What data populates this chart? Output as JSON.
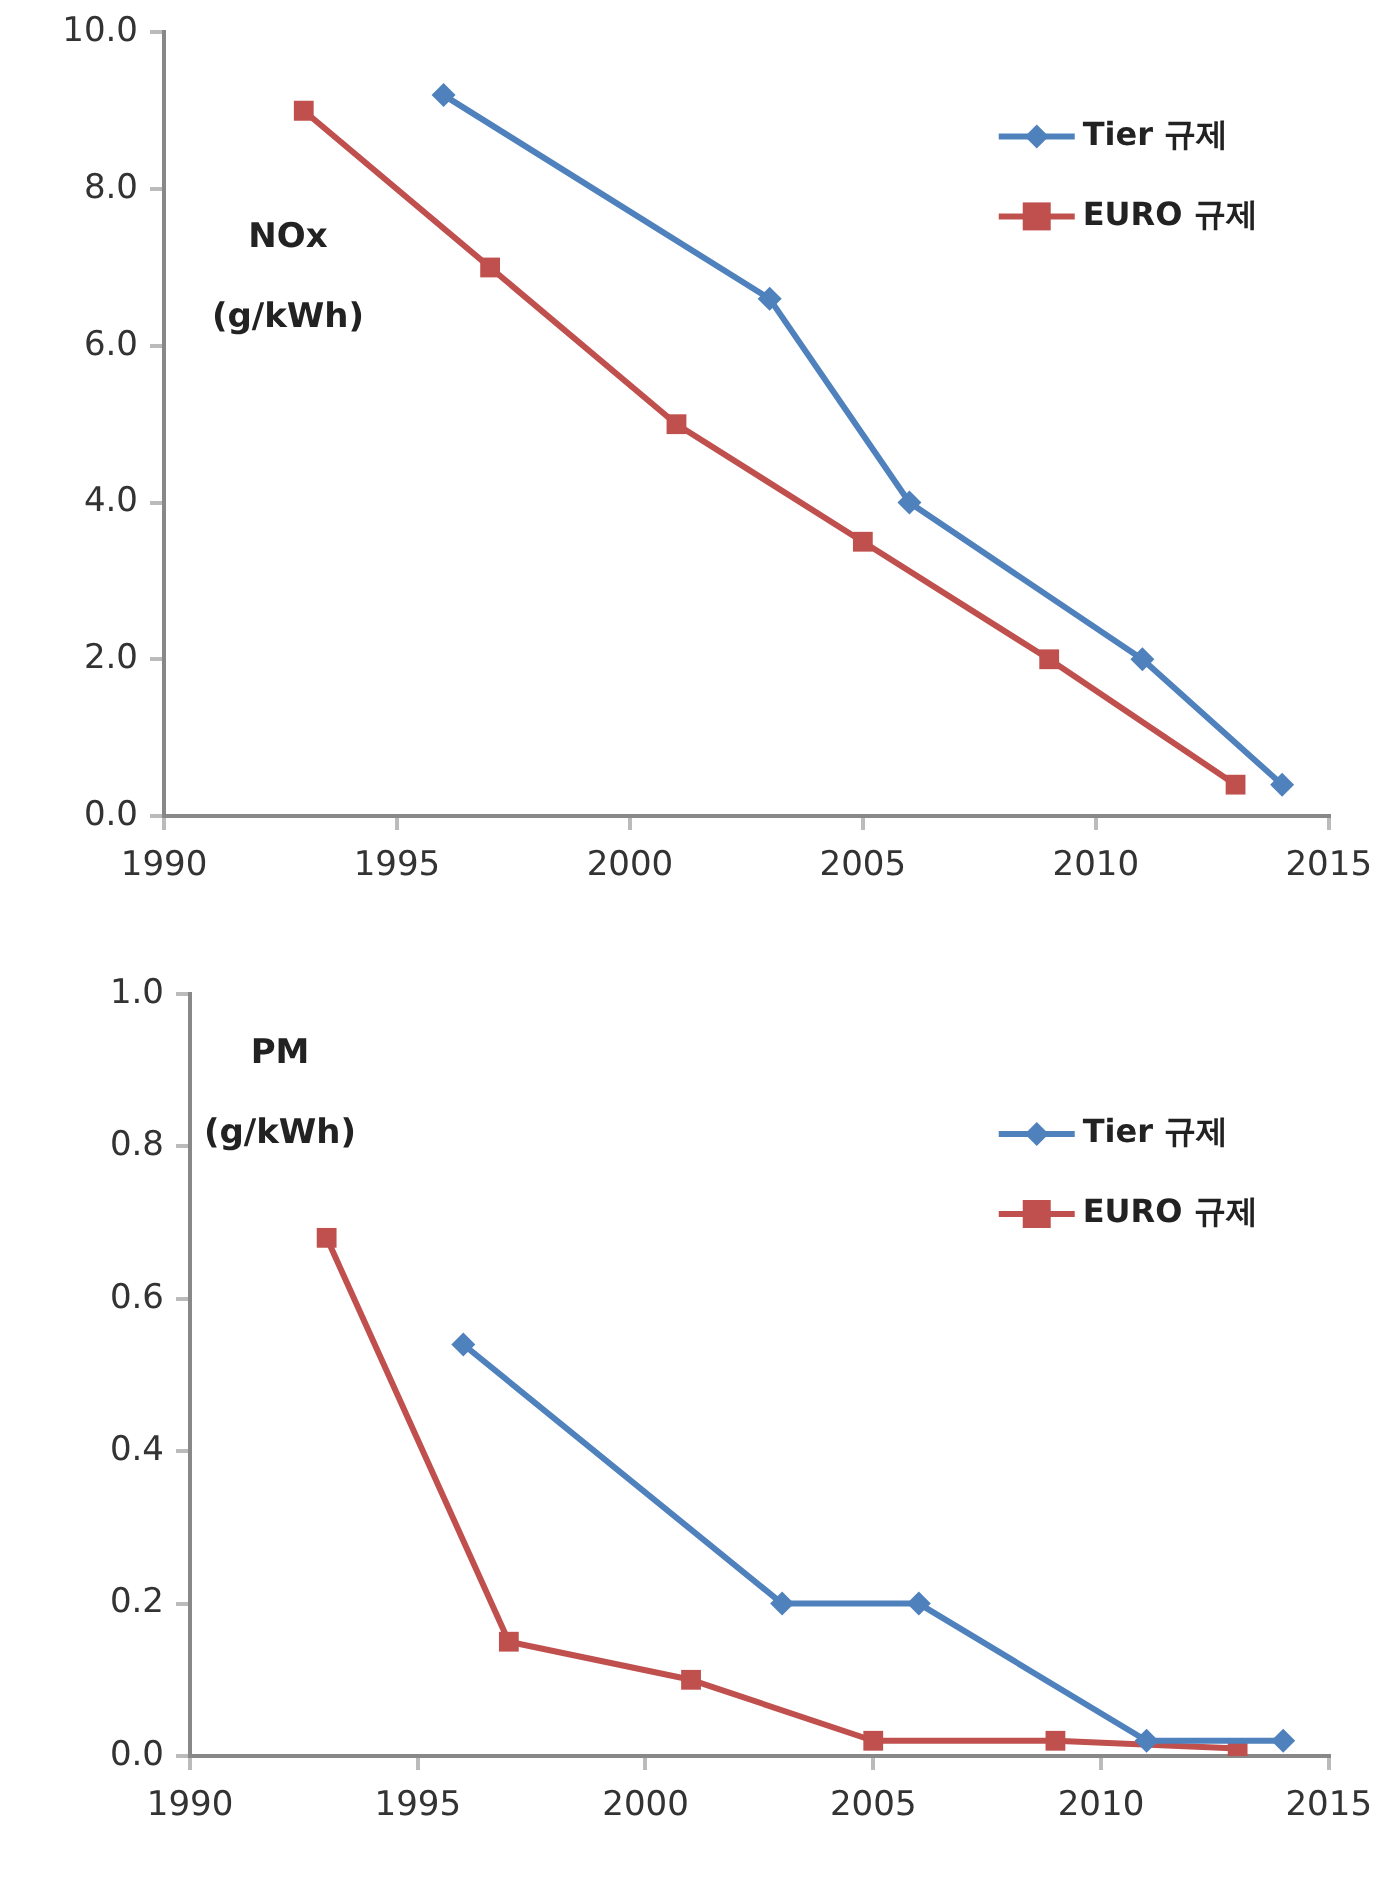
{
  "chart_data": [
    {
      "type": "line",
      "annotations": [
        "NOx",
        "(g/kWh)"
      ],
      "legend": "top right",
      "grid": false,
      "xlim": [
        1990,
        2015
      ],
      "xticks": [
        1990,
        1995,
        2000,
        2005,
        2010,
        2015
      ],
      "ylim": [
        0,
        10
      ],
      "yticks": [
        {
          "value": 0,
          "label": "0.0"
        },
        {
          "value": 2,
          "label": "2.0"
        },
        {
          "value": 4,
          "label": "4.0"
        },
        {
          "value": 6,
          "label": "6.0"
        },
        {
          "value": 8,
          "label": "8.0"
        },
        {
          "value": 10,
          "label": "10.0"
        }
      ],
      "series": [
        {
          "name": "Tier 규제",
          "color": "#4f81bd",
          "marker": "diamond",
          "x": [
            1996,
            2003,
            2006,
            2011,
            2014
          ],
          "values": [
            9.2,
            6.6,
            4.0,
            2.0,
            0.4
          ]
        },
        {
          "name": "EURO 규제",
          "color": "#c0504d",
          "marker": "square",
          "x": [
            1993,
            1997,
            2001,
            2005,
            2009,
            2013
          ],
          "values": [
            9.0,
            7.0,
            5.0,
            3.5,
            2.0,
            0.4
          ]
        }
      ]
    },
    {
      "type": "line",
      "annotations": [
        "PM",
        "(g/kWh)"
      ],
      "legend": "top right",
      "grid": false,
      "xlim": [
        1990,
        2015
      ],
      "xticks": [
        1990,
        1995,
        2000,
        2005,
        2010,
        2015
      ],
      "ylim": [
        0,
        1
      ],
      "yticks": [
        {
          "value": 0,
          "label": "0.0"
        },
        0.2,
        0.4,
        0.6,
        0.8,
        {
          "value": 1,
          "label": "1.0"
        }
      ],
      "series": [
        {
          "name": "Tier 규제",
          "color": "#4f81bd",
          "marker": "diamond",
          "x": [
            1996,
            2003,
            2006,
            2011,
            2014
          ],
          "values": [
            0.54,
            0.2,
            0.2,
            0.02,
            0.02
          ]
        },
        {
          "name": "EURO 규제",
          "color": "#c0504d",
          "marker": "square",
          "x": [
            1993,
            1997,
            2001,
            2005,
            2009,
            2013
          ],
          "values": [
            0.68,
            0.15,
            0.1,
            0.02,
            0.02,
            0.01
          ]
        }
      ]
    }
  ]
}
